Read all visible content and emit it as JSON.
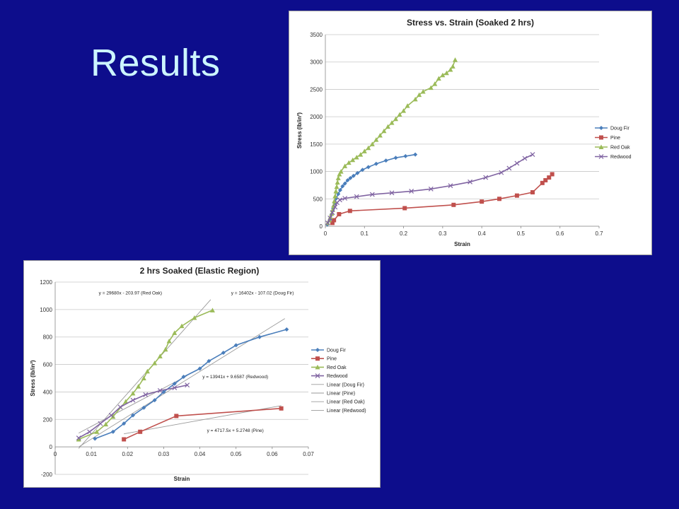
{
  "slide": {
    "title": "Results"
  },
  "chart_data": [
    {
      "type": "scatter",
      "title": "Stress vs. Strain (Soaked 2 hrs)",
      "xlabel": "Strain",
      "ylabel": "Stress (lb/in²)",
      "xlim": [
        0,
        0.7
      ],
      "ylim": [
        0,
        3500
      ],
      "xticks": [
        0,
        0.1,
        0.2,
        0.3,
        0.4,
        0.5,
        0.6,
        0.7
      ],
      "yticks": [
        0,
        500,
        1000,
        1500,
        2000,
        2500,
        3000,
        3500
      ],
      "legend_position": "right",
      "grid": true,
      "series": [
        {
          "name": "Doug Fir",
          "color": "#4a7ebb",
          "marker": "diamond",
          "points": [
            [
              0.005,
              30
            ],
            [
              0.012,
              120
            ],
            [
              0.016,
              220
            ],
            [
              0.02,
              320
            ],
            [
              0.024,
              420
            ],
            [
              0.028,
              510
            ],
            [
              0.033,
              590
            ],
            [
              0.038,
              660
            ],
            [
              0.044,
              730
            ],
            [
              0.05,
              780
            ],
            [
              0.057,
              840
            ],
            [
              0.064,
              880
            ],
            [
              0.072,
              920
            ],
            [
              0.082,
              970
            ],
            [
              0.095,
              1030
            ],
            [
              0.11,
              1080
            ],
            [
              0.13,
              1140
            ],
            [
              0.155,
              1200
            ],
            [
              0.18,
              1250
            ],
            [
              0.205,
              1280
            ],
            [
              0.23,
              1310
            ]
          ]
        },
        {
          "name": "Pine",
          "color": "#c0504d",
          "marker": "square",
          "points": [
            [
              0.018,
              60
            ],
            [
              0.022,
              110
            ],
            [
              0.035,
              220
            ],
            [
              0.063,
              280
            ],
            [
              0.203,
              330
            ],
            [
              0.328,
              390
            ],
            [
              0.4,
              450
            ],
            [
              0.445,
              500
            ],
            [
              0.49,
              560
            ],
            [
              0.53,
              620
            ],
            [
              0.555,
              790
            ],
            [
              0.563,
              840
            ],
            [
              0.572,
              890
            ],
            [
              0.58,
              950
            ]
          ]
        },
        {
          "name": "Red Oak",
          "color": "#9bbb59",
          "marker": "triangle",
          "points": [
            [
              0.006,
              60
            ],
            [
              0.01,
              110
            ],
            [
              0.013,
              170
            ],
            [
              0.016,
              230
            ],
            [
              0.019,
              300
            ],
            [
              0.021,
              380
            ],
            [
              0.023,
              460
            ],
            [
              0.025,
              550
            ],
            [
              0.027,
              640
            ],
            [
              0.029,
              720
            ],
            [
              0.031,
              800
            ],
            [
              0.033,
              880
            ],
            [
              0.036,
              950
            ],
            [
              0.04,
              1000
            ],
            [
              0.05,
              1100
            ],
            [
              0.06,
              1160
            ],
            [
              0.07,
              1210
            ],
            [
              0.08,
              1260
            ],
            [
              0.09,
              1310
            ],
            [
              0.1,
              1370
            ],
            [
              0.11,
              1430
            ],
            [
              0.12,
              1500
            ],
            [
              0.13,
              1580
            ],
            [
              0.14,
              1660
            ],
            [
              0.15,
              1740
            ],
            [
              0.16,
              1820
            ],
            [
              0.17,
              1890
            ],
            [
              0.18,
              1960
            ],
            [
              0.19,
              2040
            ],
            [
              0.2,
              2110
            ],
            [
              0.21,
              2200
            ],
            [
              0.23,
              2320
            ],
            [
              0.24,
              2400
            ],
            [
              0.25,
              2460
            ],
            [
              0.27,
              2530
            ],
            [
              0.28,
              2600
            ],
            [
              0.29,
              2700
            ],
            [
              0.3,
              2760
            ],
            [
              0.31,
              2800
            ],
            [
              0.32,
              2860
            ],
            [
              0.326,
              2920
            ],
            [
              0.332,
              3040
            ]
          ]
        },
        {
          "name": "Redwood",
          "color": "#8064a2",
          "marker": "x",
          "points": [
            [
              0.006,
              60
            ],
            [
              0.012,
              150
            ],
            [
              0.018,
              250
            ],
            [
              0.025,
              350
            ],
            [
              0.03,
              430
            ],
            [
              0.037,
              480
            ],
            [
              0.05,
              510
            ],
            [
              0.08,
              540
            ],
            [
              0.12,
              580
            ],
            [
              0.17,
              610
            ],
            [
              0.22,
              640
            ],
            [
              0.27,
              680
            ],
            [
              0.32,
              740
            ],
            [
              0.37,
              810
            ],
            [
              0.41,
              890
            ],
            [
              0.45,
              980
            ],
            [
              0.47,
              1060
            ],
            [
              0.49,
              1150
            ],
            [
              0.51,
              1240
            ],
            [
              0.53,
              1310
            ]
          ]
        }
      ]
    },
    {
      "type": "scatter",
      "title": "2 hrs Soaked (Elastic Region)",
      "xlabel": "Strain",
      "ylabel": "Stress (lb/in²)",
      "xlim": [
        0,
        0.07
      ],
      "ylim": [
        -200,
        1200
      ],
      "xticks": [
        0,
        0.01,
        0.02,
        0.03,
        0.04,
        0.05,
        0.06,
        0.07
      ],
      "xticklabels": [
        "0",
        "0.01",
        "0.02",
        "0.03",
        "0.04",
        "0.05",
        "0.06",
        "0.07"
      ],
      "yticks": [
        -200,
        0,
        200,
        400,
        600,
        800,
        1000,
        1200
      ],
      "legend_position": "right",
      "grid": true,
      "series": [
        {
          "name": "Doug Fir",
          "color": "#4a7ebb",
          "marker": "diamond",
          "points": [
            [
              0.011,
              60
            ],
            [
              0.016,
              110
            ],
            [
              0.019,
              170
            ],
            [
              0.0215,
              230
            ],
            [
              0.0245,
              285
            ],
            [
              0.0275,
              340
            ],
            [
              0.03,
              400
            ],
            [
              0.033,
              460
            ],
            [
              0.0355,
              510
            ],
            [
              0.04,
              570
            ],
            [
              0.0425,
              625
            ],
            [
              0.0465,
              685
            ],
            [
              0.05,
              740
            ],
            [
              0.0565,
              800
            ],
            [
              0.064,
              855
            ]
          ]
        },
        {
          "name": "Pine",
          "color": "#c0504d",
          "marker": "square",
          "points": [
            [
              0.019,
              55
            ],
            [
              0.0235,
              110
            ],
            [
              0.0335,
              225
            ],
            [
              0.0625,
              280
            ]
          ]
        },
        {
          "name": "Red Oak",
          "color": "#9bbb59",
          "marker": "triangle",
          "points": [
            [
              0.0065,
              55
            ],
            [
              0.0115,
              110
            ],
            [
              0.014,
              165
            ],
            [
              0.016,
              220
            ],
            [
              0.0195,
              330
            ],
            [
              0.0215,
              390
            ],
            [
              0.023,
              440
            ],
            [
              0.0245,
              500
            ],
            [
              0.0255,
              550
            ],
            [
              0.0275,
              610
            ],
            [
              0.029,
              660
            ],
            [
              0.0305,
              710
            ],
            [
              0.0315,
              770
            ],
            [
              0.033,
              830
            ],
            [
              0.035,
              880
            ],
            [
              0.0385,
              940
            ],
            [
              0.0435,
              995
            ]
          ]
        },
        {
          "name": "Redwood",
          "color": "#8064a2",
          "marker": "x",
          "points": [
            [
              0.0065,
              65
            ],
            [
              0.0095,
              110
            ],
            [
              0.0125,
              170
            ],
            [
              0.0155,
              230
            ],
            [
              0.018,
              290
            ],
            [
              0.0215,
              340
            ],
            [
              0.025,
              380
            ],
            [
              0.029,
              410
            ],
            [
              0.033,
              430
            ],
            [
              0.0365,
              450
            ]
          ]
        }
      ],
      "trendlines": [
        {
          "name": "Linear (Doug Fir)",
          "color": "#9a9a9a",
          "slope": 16402,
          "intercept": -107.02,
          "x_range": [
            0.0065,
            0.0635
          ]
        },
        {
          "name": "Linear (Pine)",
          "color": "#9a9a9a",
          "slope": 4717.5,
          "intercept": 5.2748,
          "x_range": [
            0.019,
            0.0625
          ]
        },
        {
          "name": "Linear (Red Oak)",
          "color": "#9a9a9a",
          "slope": 29680,
          "intercept": -203.97,
          "x_range": [
            0.0065,
            0.043
          ]
        },
        {
          "name": "Linear (Redwood)",
          "color": "#9a9a9a",
          "slope": 13941,
          "intercept": 9.6587,
          "x_range": [
            0.0065,
            0.0365
          ]
        }
      ],
      "annotations": [
        {
          "text": "y = 29680x - 203.97 (Red Oak)",
          "x": 0.0208,
          "y": 1110
        },
        {
          "text": "y = 16402x - 107.02 (Doug Fir)",
          "x": 0.0573,
          "y": 1110
        },
        {
          "text": "y = 13941x + 9.6587 (Redwood)",
          "x": 0.0498,
          "y": 500
        },
        {
          "text": "y = 4717.5x + 5.2748 (Pine)",
          "x": 0.0498,
          "y": 110
        }
      ]
    }
  ]
}
